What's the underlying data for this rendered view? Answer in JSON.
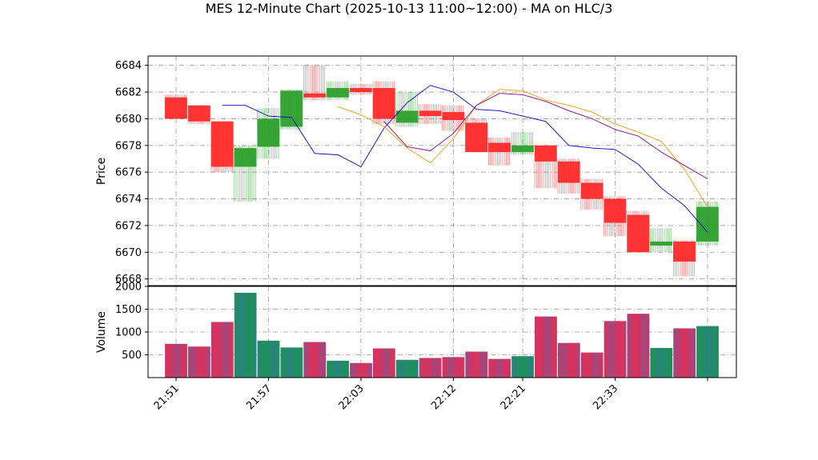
{
  "chart_data": {
    "type": "candlestick_volume",
    "title": "MES 12-Minute Chart (2025-10-13 11:00~12:00) - MA on HLC/3",
    "price_panel": {
      "ylabel": "Price",
      "ylim": [
        6667.5,
        6684.7
      ],
      "yticks": [
        6668,
        6670,
        6672,
        6674,
        6676,
        6678,
        6680,
        6682,
        6684
      ],
      "grid": true
    },
    "volume_panel": {
      "ylabel": "Volume",
      "ylim": [
        0,
        2000
      ],
      "yticks": [
        500,
        1000,
        1500,
        2000
      ],
      "grid": true
    },
    "x_tick_labels": [
      "21:51",
      "21:57",
      "22:03",
      "22:12",
      "22:21",
      "22:33",
      ""
    ],
    "colors": {
      "up": "#2ca02c",
      "down": "#ff2a2a",
      "ma_fast": "#0000cc",
      "ma_mid": "#f0a000",
      "ma_slow": "#8b008b",
      "volume_up": "#1f8f5f",
      "volume_down": "#d6335f"
    },
    "candles": [
      {
        "open": 6681.6,
        "high": 6681.8,
        "low": 6680.0,
        "close": 6680.0,
        "volume": 740
      },
      {
        "open": 6681.0,
        "high": 6681.0,
        "low": 6679.6,
        "close": 6679.8,
        "volume": 680
      },
      {
        "open": 6679.8,
        "high": 6679.8,
        "low": 6676.0,
        "close": 6676.4,
        "volume": 1220
      },
      {
        "open": 6676.4,
        "high": 6678.0,
        "low": 6673.8,
        "close": 6677.8,
        "volume": 1860
      },
      {
        "open": 6677.9,
        "high": 6680.8,
        "low": 6677.0,
        "close": 6680.0,
        "volume": 810
      },
      {
        "open": 6679.4,
        "high": 6682.2,
        "low": 6679.2,
        "close": 6682.1,
        "volume": 660
      },
      {
        "open": 6681.9,
        "high": 6684.0,
        "low": 6681.4,
        "close": 6681.6,
        "volume": 780
      },
      {
        "open": 6681.6,
        "high": 6682.8,
        "low": 6681.4,
        "close": 6682.3,
        "volume": 370
      },
      {
        "open": 6682.3,
        "high": 6682.6,
        "low": 6681.8,
        "close": 6682.0,
        "volume": 320
      },
      {
        "open": 6682.3,
        "high": 6682.8,
        "low": 6679.6,
        "close": 6680.0,
        "volume": 640
      },
      {
        "open": 6679.7,
        "high": 6682.0,
        "low": 6679.4,
        "close": 6680.6,
        "volume": 390
      },
      {
        "open": 6680.6,
        "high": 6681.1,
        "low": 6679.6,
        "close": 6680.2,
        "volume": 430
      },
      {
        "open": 6680.5,
        "high": 6681.0,
        "low": 6679.1,
        "close": 6679.9,
        "volume": 450
      },
      {
        "open": 6679.7,
        "high": 6680.0,
        "low": 6677.5,
        "close": 6677.5,
        "volume": 570
      },
      {
        "open": 6678.2,
        "high": 6678.6,
        "low": 6676.5,
        "close": 6677.5,
        "volume": 410
      },
      {
        "open": 6677.5,
        "high": 6679.0,
        "low": 6677.3,
        "close": 6678.0,
        "volume": 470
      },
      {
        "open": 6678.0,
        "high": 6678.0,
        "low": 6674.8,
        "close": 6676.8,
        "volume": 1340
      },
      {
        "open": 6676.8,
        "high": 6677.0,
        "low": 6674.4,
        "close": 6675.2,
        "volume": 760
      },
      {
        "open": 6675.2,
        "high": 6675.5,
        "low": 6673.2,
        "close": 6674.0,
        "volume": 550
      },
      {
        "open": 6674.0,
        "high": 6674.2,
        "low": 6671.2,
        "close": 6672.2,
        "volume": 1240
      },
      {
        "open": 6672.8,
        "high": 6673.1,
        "low": 6670.0,
        "close": 6670.0,
        "volume": 1400
      },
      {
        "open": 6670.5,
        "high": 6671.8,
        "low": 6670.0,
        "close": 6670.8,
        "volume": 650
      },
      {
        "open": 6670.8,
        "high": 6670.9,
        "low": 6668.2,
        "close": 6669.3,
        "volume": 1080
      },
      {
        "open": 6670.8,
        "high": 6673.8,
        "low": 6670.5,
        "close": 6673.4,
        "volume": 1130
      }
    ],
    "moving_averages": [
      {
        "color_key": "ma_fast",
        "values": [
          6681.0,
          6681.0,
          6680.2,
          6680.1,
          6677.4,
          6677.3,
          6676.4,
          6679.3,
          6681.2,
          6682.5,
          6682.0,
          6680.7,
          6680.6,
          6680.2,
          6679.8,
          6678.0,
          6677.8,
          6677.7,
          6676.6,
          6674.8,
          6673.5,
          6671.5
        ]
      },
      {
        "color_key": "ma_mid",
        "values": [
          6680.9,
          6680.3,
          6679.4,
          6677.8,
          6676.7,
          6678.5,
          6681.0,
          6682.2,
          6682.1,
          6681.4,
          6681.0,
          6680.5,
          6679.6,
          6679.0,
          6678.3,
          6676.2,
          6673.4
        ]
      },
      {
        "color_key": "ma_slow",
        "values": [
          6679.8,
          6677.9,
          6677.6,
          6678.9,
          6681.0,
          6681.9,
          6681.8,
          6681.3,
          6680.6,
          6680.0,
          6679.2,
          6678.7,
          6677.5,
          6676.5,
          6675.5
        ]
      }
    ]
  }
}
